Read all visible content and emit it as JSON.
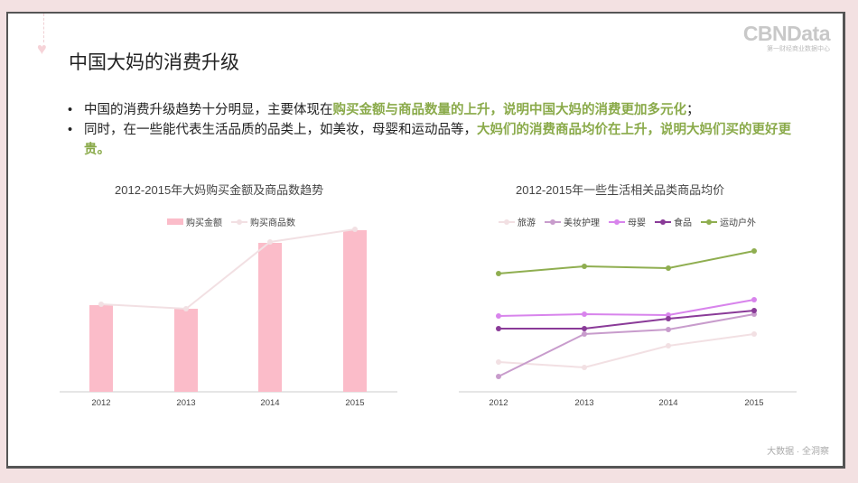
{
  "slide": {
    "title": "中国大妈的消费升级",
    "logo": {
      "main": "CBNData",
      "sub": "第一财经商业数据中心"
    },
    "bullets": [
      {
        "plain": "中国的消费升级趋势十分明显，主要体现在",
        "highlight": "购买金额与商品数量的上升，说明中国大妈的消费更加多元化",
        "tail": "；"
      },
      {
        "plain": "同时，在一些能代表生活品质的品类上，如美妆，母婴和运动品等，",
        "highlight": "大妈们的消费商品均价在上升，说明大妈们买的更好更贵。",
        "tail": ""
      }
    ],
    "footer": "大数据 · 全洞察",
    "highlight_color": "#8aaa4a"
  },
  "chart_data": [
    {
      "type": "bar",
      "title": "2012-2015年大妈购买金额及商品数趋势",
      "categories": [
        "2012",
        "2013",
        "2014",
        "2015"
      ],
      "series": [
        {
          "name": "购买金额",
          "kind": "bar",
          "color": "#fbbcc9",
          "values": [
            96,
            92,
            165,
            179
          ]
        },
        {
          "name": "购买商品数",
          "kind": "line",
          "color": "#f2e0e3",
          "values": [
            97,
            92,
            166,
            180
          ]
        }
      ],
      "ylim": [
        0,
        200
      ],
      "xlabel": "",
      "ylabel": "",
      "grid": false,
      "legend": "top"
    },
    {
      "type": "line",
      "title": "2012-2015年一些生活相关品类商品均价",
      "categories": [
        "2012",
        "2013",
        "2014",
        "2015"
      ],
      "series": [
        {
          "name": "旅游",
          "color": "#f2e0e3",
          "values": [
            33,
            27,
            51,
            64
          ]
        },
        {
          "name": "美妆护理",
          "color": "#c89ccc",
          "values": [
            17,
            64,
            69,
            86
          ]
        },
        {
          "name": "母婴",
          "color": "#d884ec",
          "values": [
            84,
            86,
            85,
            102
          ]
        },
        {
          "name": "食品",
          "color": "#8a3b98",
          "values": [
            70,
            70,
            81,
            90
          ]
        },
        {
          "name": "运动户外",
          "color": "#8fae50",
          "values": [
            131,
            139,
            137,
            156
          ]
        }
      ],
      "ylim": [
        0,
        200
      ],
      "xlabel": "",
      "ylabel": "",
      "grid": false,
      "legend": "top"
    }
  ]
}
